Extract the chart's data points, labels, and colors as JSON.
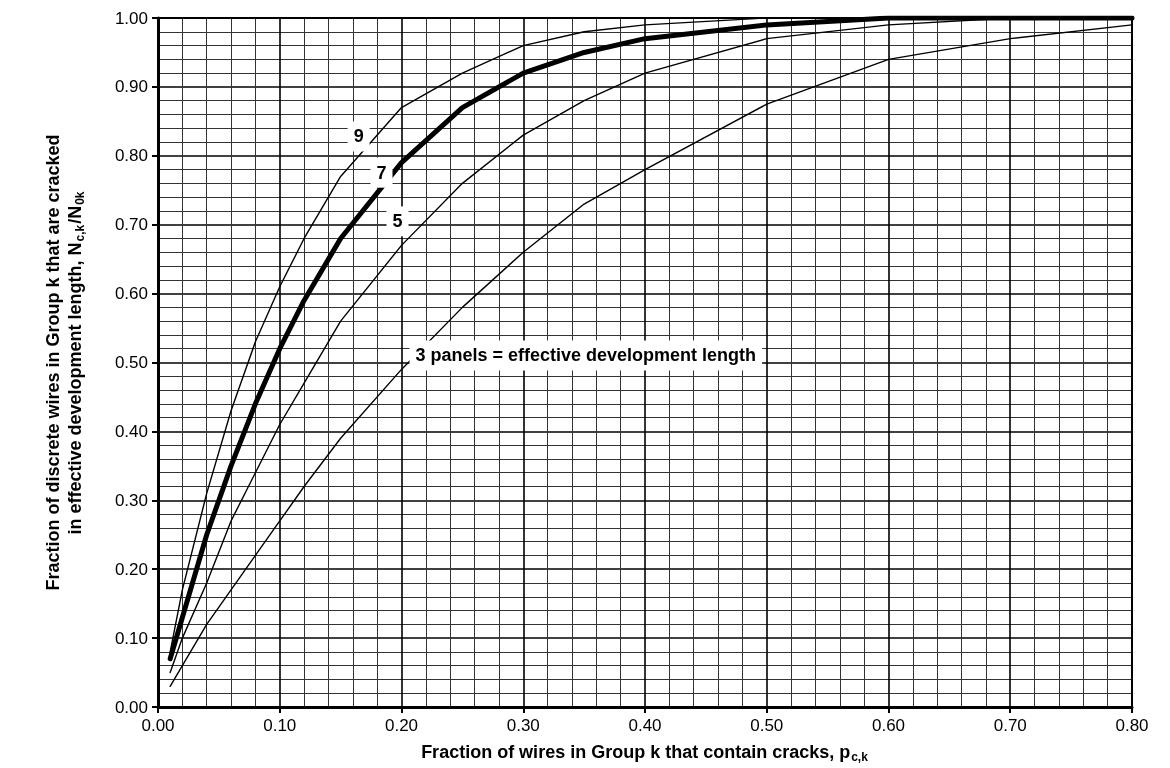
{
  "chart_data": {
    "type": "line",
    "xlabel": "Fraction of wires in Group k that contain cracks, p$_{c,k}$",
    "ylabel": "Fraction of discrete wires in Group k that are cracked\nin effective development length, N$_{c,k}$/N$_{0k}$",
    "x": [
      0.01,
      0.02,
      0.04,
      0.06,
      0.08,
      0.1,
      0.12,
      0.15,
      0.2,
      0.25,
      0.3,
      0.35,
      0.4,
      0.5,
      0.6,
      0.7,
      0.8
    ],
    "series": [
      {
        "name": "3 panels = effective development length",
        "color": "#000000",
        "values": [
          0.03,
          0.06,
          0.12,
          0.17,
          0.22,
          0.27,
          0.32,
          0.39,
          0.49,
          0.58,
          0.66,
          0.73,
          0.78,
          0.875,
          0.94,
          0.97,
          0.99
        ]
      },
      {
        "name": "5",
        "color": "#000000",
        "values": [
          0.05,
          0.1,
          0.18,
          0.27,
          0.34,
          0.41,
          0.47,
          0.56,
          0.67,
          0.76,
          0.83,
          0.88,
          0.92,
          0.97,
          0.99,
          1.0,
          1.0
        ]
      },
      {
        "name": "7",
        "color": "#000000",
        "values": [
          0.07,
          0.13,
          0.25,
          0.35,
          0.44,
          0.52,
          0.59,
          0.68,
          0.79,
          0.87,
          0.92,
          0.95,
          0.97,
          0.99,
          1.0,
          1.0,
          1.0
        ]
      },
      {
        "name": "9",
        "color": "#000000",
        "values": [
          0.08,
          0.17,
          0.31,
          0.43,
          0.53,
          0.61,
          0.68,
          0.77,
          0.87,
          0.92,
          0.96,
          0.98,
          0.99,
          1.0,
          1.0,
          1.0,
          1.0
        ]
      }
    ],
    "xlim": [
      0,
      0.8
    ],
    "xticks": [
      {
        "value": 0,
        "label": "0.00"
      },
      {
        "value": 0.1,
        "label": "0.10"
      },
      {
        "value": 0.2,
        "label": "0.20"
      },
      {
        "value": 0.3,
        "label": "0.30"
      },
      {
        "value": 0.4,
        "label": "0.40"
      },
      {
        "value": 0.5,
        "label": "0.50"
      },
      {
        "value": 0.6,
        "label": "0.60"
      },
      {
        "value": 0.7,
        "label": "0.70"
      },
      {
        "value": 0.8,
        "label": "0.80"
      }
    ],
    "ylim": [
      0,
      1
    ],
    "yticks": [
      {
        "value": 0,
        "label": "0.00"
      },
      {
        "value": 0.1,
        "label": "0.10"
      },
      {
        "value": 0.2,
        "label": "0.20"
      },
      {
        "value": 0.3,
        "label": "0.30"
      },
      {
        "value": 0.4,
        "label": "0.40"
      },
      {
        "value": 0.5,
        "label": "0.50"
      },
      {
        "value": 0.6,
        "label": "0.60"
      },
      {
        "value": 0.7,
        "label": "0.70"
      },
      {
        "value": 0.8,
        "label": "0.80"
      },
      {
        "value": 0.9,
        "label": "0.90"
      },
      {
        "value": 1.0,
        "label": "1.00"
      }
    ],
    "grid": true,
    "marker": "none",
    "line_style": "solid"
  }
}
